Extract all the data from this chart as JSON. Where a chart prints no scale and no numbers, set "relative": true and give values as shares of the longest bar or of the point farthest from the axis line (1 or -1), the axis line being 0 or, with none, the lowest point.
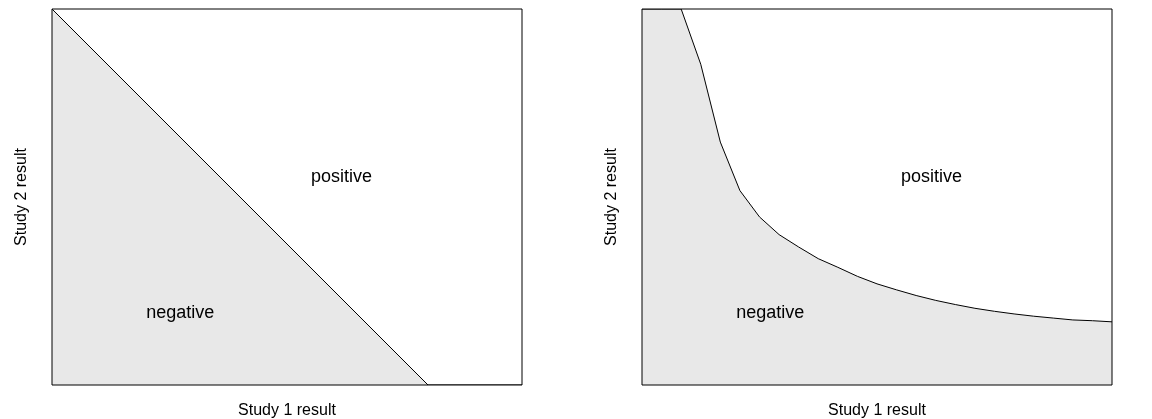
{
  "chart_data": [
    {
      "type": "area",
      "relative": true,
      "xlabel": "Study 1 result",
      "ylabel": "Study 2 result",
      "annotations": [
        "positive",
        "negative"
      ],
      "categories": [
        null,
        null,
        null,
        null,
        null,
        null,
        null,
        null,
        null,
        null,
        null
      ],
      "series": [
        {
          "color": "#e8e8e8",
          "values": [
            1,
            0.875,
            0.75,
            0.625,
            0.5,
            0.375,
            0.25,
            0.125,
            0,
            0,
            0
          ]
        }
      ]
    },
    {
      "type": "area",
      "relative": true,
      "xlabel": "Study 1 result",
      "ylabel": "Study 2 result",
      "annotations": [
        "positive",
        "negative"
      ],
      "categories": [
        null,
        null,
        null,
        null,
        null,
        null,
        null,
        null,
        null,
        null,
        null,
        null,
        null,
        null,
        null,
        null,
        null,
        null,
        null,
        null,
        null,
        null,
        null,
        null,
        null
      ],
      "series": [
        {
          "color": "#e8e8e8",
          "values": [
            1,
            1,
            1,
            0.853,
            0.646,
            0.517,
            0.447,
            0.4,
            0.367,
            0.336,
            0.313,
            0.289,
            0.269,
            0.253,
            0.238,
            0.225,
            0.214,
            0.204,
            0.196,
            0.189,
            0.183,
            0.178,
            0.173,
            0.171,
            0.168
          ]
        }
      ]
    }
  ]
}
